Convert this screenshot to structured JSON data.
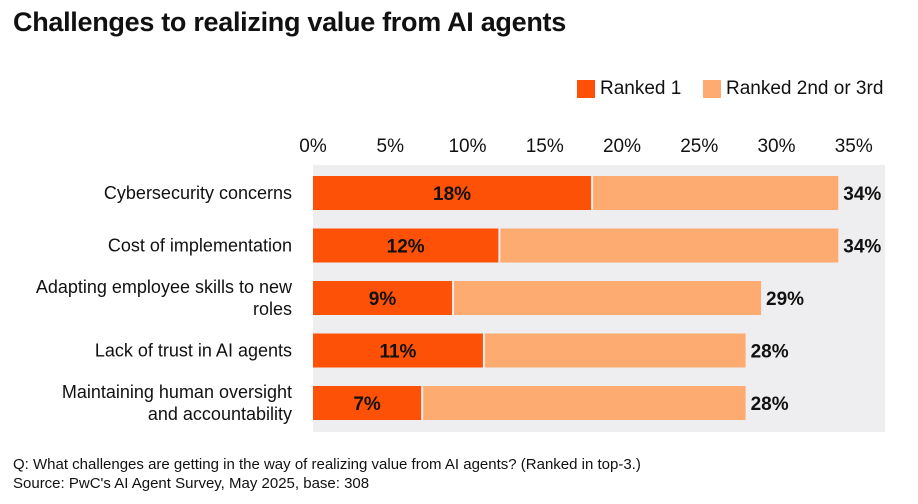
{
  "title": "Challenges to realizing value from AI agents",
  "legend": [
    {
      "label": "Ranked 1",
      "color": "#fd5108"
    },
    {
      "label": "Ranked 2nd or 3rd",
      "color": "#feab72"
    }
  ],
  "chart_data": {
    "type": "bar",
    "orientation": "horizontal",
    "stacked": true,
    "categories": [
      "Cybersecurity concerns",
      "Cost of implementation",
      "Adapting employee skills to new roles",
      "Lack of trust in AI agents",
      "Maintaining human oversight and accountability"
    ],
    "category_lines": [
      [
        "Cybersecurity concerns"
      ],
      [
        "Cost of implementation"
      ],
      [
        "Adapting employee skills to new",
        "roles"
      ],
      [
        "Lack of trust in AI agents"
      ],
      [
        "Maintaining human oversight",
        "and accountability"
      ]
    ],
    "series": [
      {
        "name": "Ranked 1",
        "values": [
          18,
          12,
          9,
          11,
          7
        ],
        "color": "#fd5108",
        "labels": [
          "18%",
          "12%",
          "9%",
          "11%",
          "7%"
        ]
      },
      {
        "name": "Ranked 2nd or 3rd",
        "values": [
          16,
          22,
          20,
          17,
          21
        ],
        "color": "#feab72"
      }
    ],
    "totals": [
      34,
      34,
      29,
      28,
      28
    ],
    "total_labels": [
      "34%",
      "34%",
      "29%",
      "28%",
      "28%"
    ],
    "xlim": [
      0,
      37
    ],
    "xticks": [
      0,
      5,
      10,
      15,
      20,
      25,
      30,
      35
    ],
    "xtick_labels": [
      "0%",
      "5%",
      "10%",
      "15%",
      "20%",
      "25%",
      "30%",
      "35%"
    ],
    "axis_position": "top",
    "legend_position": "top-right",
    "plot_background": "#eeeef0",
    "grid": false
  },
  "footer": {
    "question": "Q: What challenges are getting in the way of realizing value from AI agents? (Ranked in top-3.)",
    "source": "Source: PwC's AI Agent Survey, May 2025, base: 308"
  }
}
